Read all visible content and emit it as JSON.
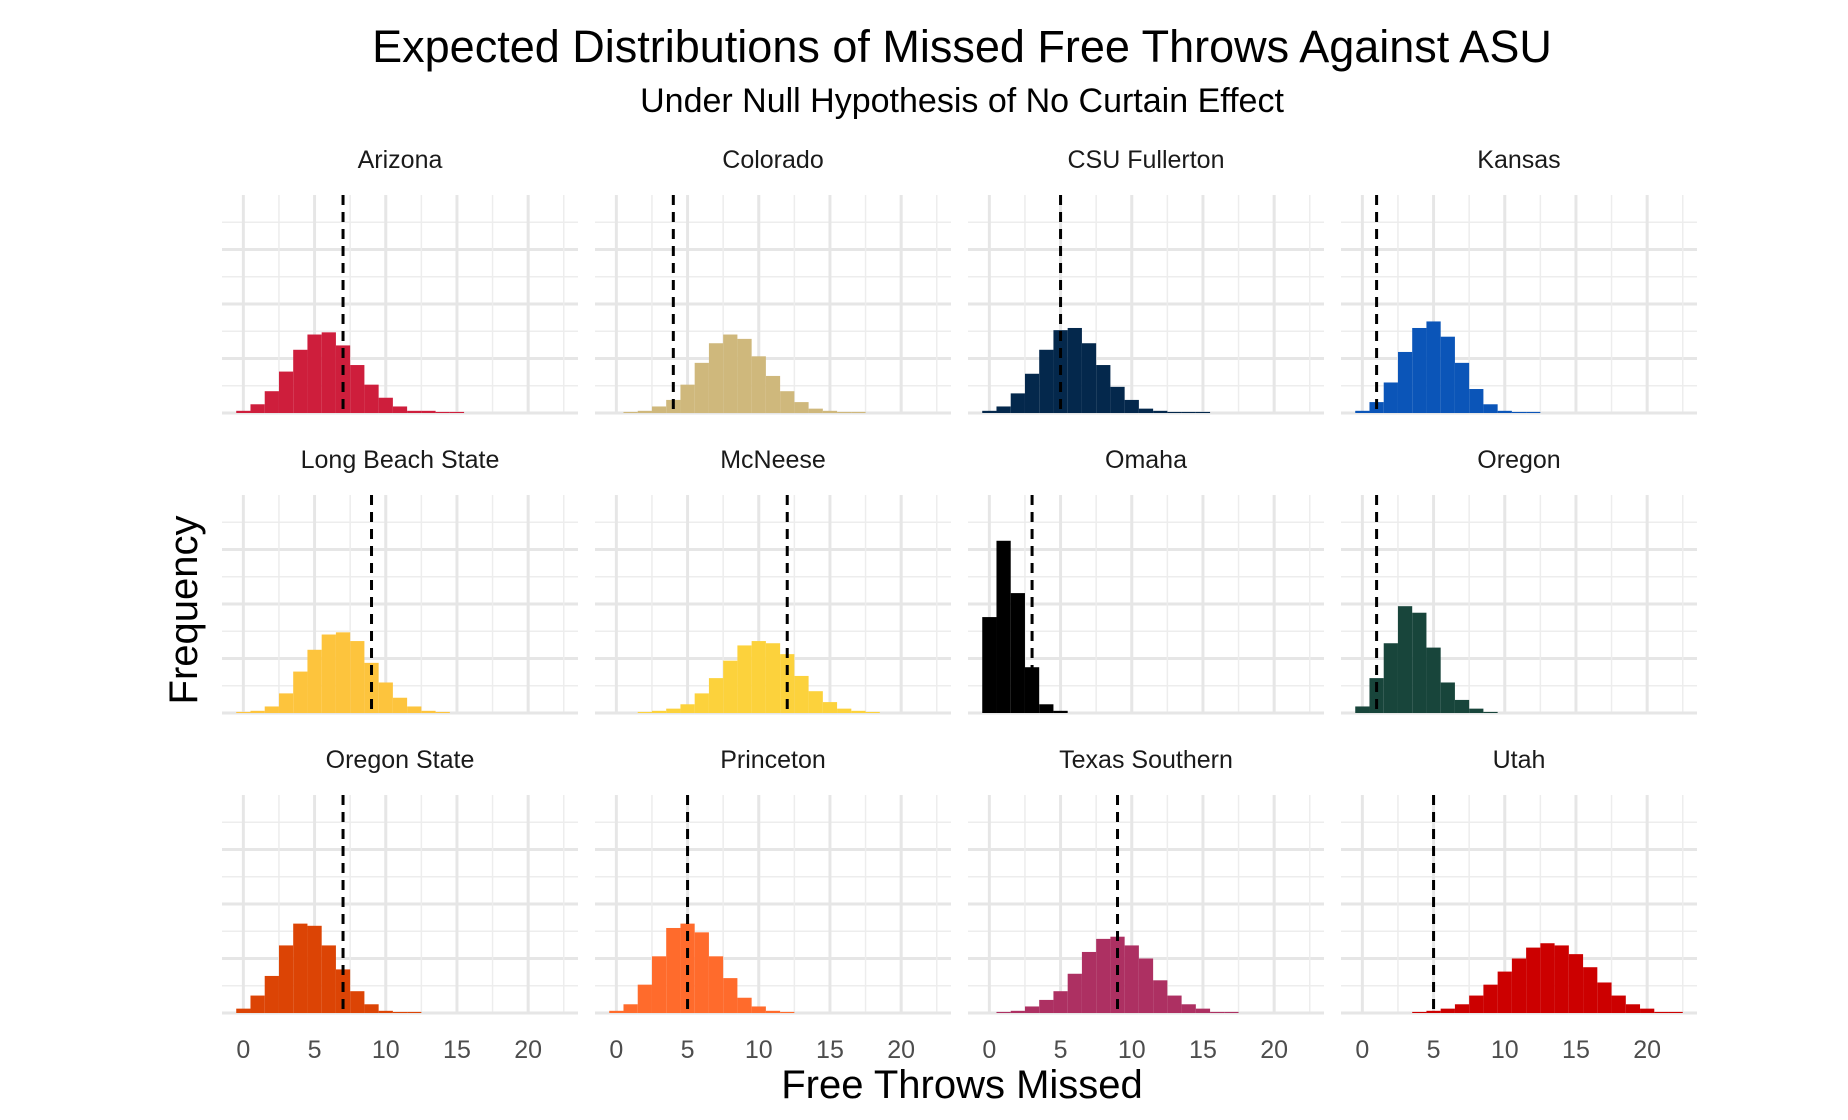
{
  "chart_data": {
    "type": "bar",
    "title": "Expected Distributions of Missed Free Throws Against ASU",
    "subtitle": "Under Null Hypothesis of No Curtain Effect",
    "xlabel": "Free Throws Missed",
    "ylabel": "Frequency",
    "xlim": [
      -1.5,
      23.5
    ],
    "ylim": [
      0,
      1.0
    ],
    "x_ticks": [
      0,
      5,
      10,
      15,
      20
    ],
    "x_tick_labels": [
      "0",
      "5",
      "10",
      "15",
      "20"
    ],
    "grid": true,
    "bins": [
      -0.5,
      0.5,
      1.5,
      2.5,
      3.5,
      4.5,
      5.5,
      6.5,
      7.5,
      8.5,
      9.5,
      10.5,
      11.5,
      12.5,
      13.5,
      14.5,
      15.5,
      16.5,
      17.5,
      18.5,
      19.5,
      20.5,
      21.5,
      22.5
    ],
    "bin_width": 1,
    "reference_line_style": "dashed",
    "panels": [
      {
        "name": "Arizona",
        "color": "#CE1E3C",
        "reference": 7,
        "values": [
          0.01,
          0.04,
          0.1,
          0.19,
          0.29,
          0.36,
          0.37,
          0.31,
          0.22,
          0.13,
          0.07,
          0.03,
          0.01,
          0.01,
          0.005,
          0.005,
          0,
          0,
          0,
          0,
          0,
          0,
          0
        ]
      },
      {
        "name": "Colorado",
        "color": "#CFB87C",
        "reference": 4,
        "values": [
          0,
          0.005,
          0.01,
          0.03,
          0.06,
          0.13,
          0.23,
          0.32,
          0.36,
          0.34,
          0.26,
          0.17,
          0.1,
          0.05,
          0.02,
          0.01,
          0.005,
          0.005,
          0,
          0,
          0,
          0,
          0
        ]
      },
      {
        "name": "CSU Fullerton",
        "color": "#04284C",
        "reference": 5,
        "values": [
          0.01,
          0.03,
          0.09,
          0.18,
          0.29,
          0.38,
          0.39,
          0.32,
          0.22,
          0.12,
          0.06,
          0.02,
          0.01,
          0.005,
          0.005,
          0.005,
          0,
          0,
          0,
          0,
          0,
          0,
          0
        ]
      },
      {
        "name": "Kansas",
        "color": "#0B55B8",
        "reference": 1,
        "values": [
          0.01,
          0.05,
          0.14,
          0.28,
          0.39,
          0.42,
          0.35,
          0.23,
          0.11,
          0.04,
          0.01,
          0.005,
          0.005,
          0,
          0,
          0,
          0,
          0,
          0,
          0,
          0,
          0,
          0
        ]
      },
      {
        "name": "Long Beach State",
        "color": "#FDC43D",
        "reference": 9,
        "values": [
          0.005,
          0.01,
          0.03,
          0.09,
          0.19,
          0.29,
          0.36,
          0.37,
          0.33,
          0.23,
          0.14,
          0.07,
          0.03,
          0.01,
          0.005,
          0,
          0,
          0,
          0,
          0,
          0,
          0,
          0
        ]
      },
      {
        "name": "McNeese",
        "color": "#FCD23C",
        "reference": 12,
        "values": [
          0,
          0,
          0.005,
          0.01,
          0.02,
          0.04,
          0.09,
          0.16,
          0.24,
          0.31,
          0.33,
          0.32,
          0.27,
          0.17,
          0.1,
          0.05,
          0.02,
          0.01,
          0.005,
          0,
          0,
          0,
          0
        ]
      },
      {
        "name": "Omaha",
        "color": "#000000",
        "reference": 3,
        "values": [
          0.44,
          0.79,
          0.55,
          0.21,
          0.04,
          0.01,
          0,
          0,
          0,
          0,
          0,
          0,
          0,
          0,
          0,
          0,
          0,
          0,
          0,
          0,
          0,
          0,
          0
        ]
      },
      {
        "name": "Oregon",
        "color": "#18453B",
        "reference": 1,
        "values": [
          0.03,
          0.16,
          0.32,
          0.49,
          0.46,
          0.3,
          0.14,
          0.06,
          0.02,
          0.005,
          0,
          0,
          0,
          0,
          0,
          0,
          0,
          0,
          0,
          0,
          0,
          0,
          0
        ]
      },
      {
        "name": "Oregon State",
        "color": "#DC4405",
        "reference": 7,
        "values": [
          0.02,
          0.08,
          0.17,
          0.31,
          0.41,
          0.4,
          0.31,
          0.2,
          0.1,
          0.04,
          0.01,
          0.005,
          0.005,
          0,
          0,
          0,
          0,
          0,
          0,
          0,
          0,
          0,
          0
        ]
      },
      {
        "name": "Princeton",
        "color": "#FF6B2C",
        "reference": 5,
        "values": [
          0.01,
          0.04,
          0.13,
          0.26,
          0.39,
          0.41,
          0.37,
          0.26,
          0.16,
          0.07,
          0.03,
          0.01,
          0.005,
          0,
          0,
          0,
          0,
          0,
          0,
          0,
          0,
          0,
          0
        ]
      },
      {
        "name": "Texas Southern",
        "color": "#AD3062",
        "reference": 9,
        "values": [
          0,
          0.005,
          0.01,
          0.03,
          0.06,
          0.1,
          0.18,
          0.28,
          0.34,
          0.35,
          0.31,
          0.25,
          0.15,
          0.08,
          0.04,
          0.02,
          0.005,
          0.005,
          0,
          0,
          0,
          0,
          0
        ]
      },
      {
        "name": "Utah",
        "color": "#CC0000",
        "reference": 5,
        "values": [
          0,
          0,
          0,
          0,
          0.005,
          0.01,
          0.02,
          0.04,
          0.08,
          0.13,
          0.19,
          0.25,
          0.3,
          0.32,
          0.31,
          0.27,
          0.21,
          0.14,
          0.08,
          0.04,
          0.02,
          0.005,
          0.005
        ]
      }
    ]
  }
}
